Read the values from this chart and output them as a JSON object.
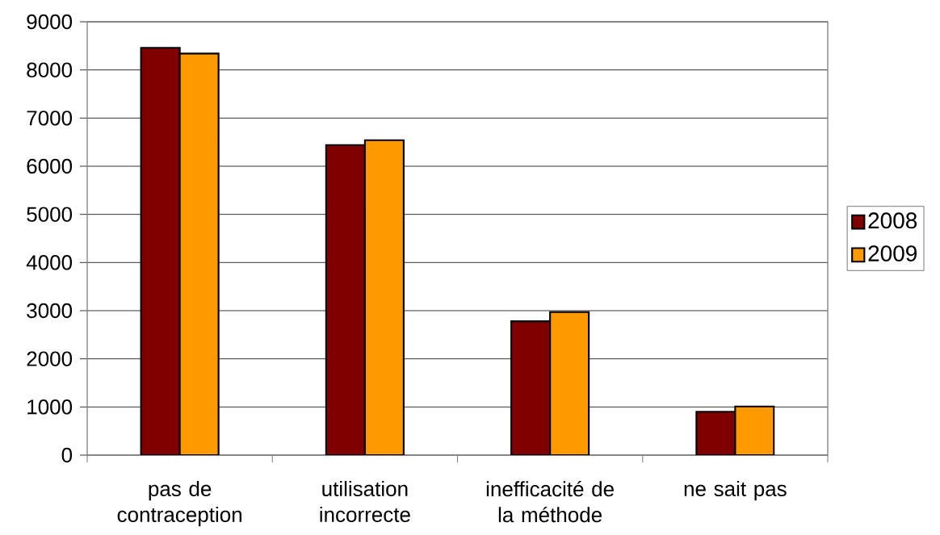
{
  "chart_data": {
    "type": "bar",
    "categories": [
      "pas de contraception",
      "utilisation incorrecte",
      "inefficacité de la méthode",
      "ne sait pas"
    ],
    "series": [
      {
        "name": "2008",
        "color": "#800000",
        "values": [
          8460,
          6440,
          2780,
          900
        ]
      },
      {
        "name": "2009",
        "color": "#ff9900",
        "values": [
          8340,
          6540,
          2970,
          1010
        ]
      }
    ],
    "ylim": [
      0,
      9000
    ],
    "yticks": [
      0,
      1000,
      2000,
      3000,
      4000,
      5000,
      6000,
      7000,
      8000,
      9000
    ],
    "grid": "y",
    "legend": "right"
  }
}
